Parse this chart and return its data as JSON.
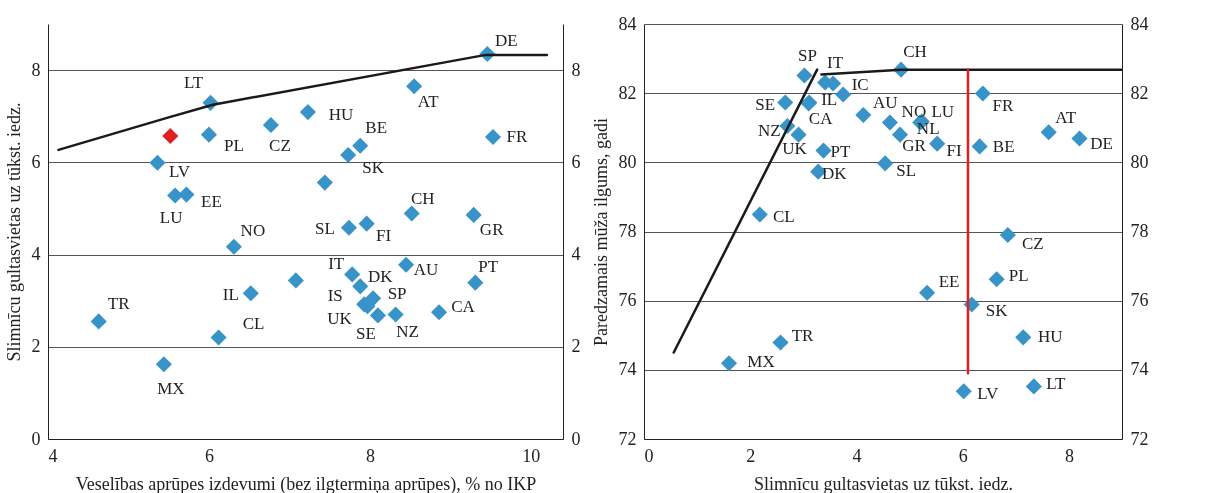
{
  "chart_data": [
    {
      "type": "scatter",
      "xlabel": "Veselības aprūpes izdevumi (bez ilgtermiņa aprūpes), % no IKP",
      "ylabel": "Slimnīcu gultasvietas uz tūkst. iedz.",
      "xlim": [
        4,
        10.4
      ],
      "ylim": [
        0,
        9
      ],
      "xticks": [
        4,
        6,
        8,
        10
      ],
      "yticks": [
        0,
        2,
        4,
        6,
        8
      ],
      "y2lim": [
        0,
        9
      ],
      "y2ticks": [
        0,
        2,
        4,
        6,
        8
      ],
      "grid": "y",
      "marker": "diamond",
      "series": [
        {
          "color": "#3893c8",
          "x": [
            9.46,
            8.55,
            9.53,
            6.02,
            6.0,
            6.77,
            7.23,
            7.88,
            7.73,
            5.36,
            5.58,
            5.72,
            7.44,
            8.52,
            9.29,
            7.74,
            7.96,
            6.31,
            7.78,
            8.45,
            9.31,
            7.08,
            6.52,
            7.88,
            8.04,
            7.93,
            7.97,
            8.1,
            8.32,
            8.86,
            4.63,
            6.12,
            5.44
          ],
          "values": [
            8.35,
            7.65,
            6.55,
            7.29,
            6.6,
            6.81,
            7.09,
            6.36,
            6.16,
            5.99,
            5.28,
            5.3,
            5.56,
            4.89,
            4.86,
            4.58,
            4.67,
            4.17,
            3.57,
            3.78,
            3.39,
            3.44,
            3.16,
            3.31,
            3.05,
            2.92,
            2.88,
            2.68,
            2.7,
            2.75,
            2.55,
            2.2,
            1.62
          ],
          "value_labels": [
            "DE",
            "AT",
            "FR",
            "LT",
            "PL",
            "CZ",
            "HU",
            "BE",
            "SK",
            "LV",
            "LU",
            "EE",
            null,
            "CH",
            "GR",
            "SL",
            "FI",
            "NO",
            "IT",
            "AU",
            "PT",
            null,
            "IL",
            "DK",
            "SP",
            "IS",
            "UK",
            "SE",
            "NZ",
            "CA",
            "TR",
            "CL",
            "MX"
          ]
        },
        {
          "type": "line",
          "marker": "none",
          "color": "#1a1a1a",
          "x": [
            4.13,
            5.51,
            6.05,
            9.44,
            10.2
          ],
          "values": [
            6.27,
            6.98,
            7.25,
            8.33,
            8.33
          ]
        },
        {
          "color": "#e02020",
          "x": [
            5.52
          ],
          "values": [
            6.57
          ]
        }
      ]
    },
    {
      "type": "scatter",
      "xlabel": "Slimnīcu gultasvietas uz tūkst. iedz.",
      "ylabel": "Paredzamais mūža ilgums, gadi",
      "xlim": [
        0,
        9
      ],
      "ylim": [
        72,
        84
      ],
      "xticks": [
        0,
        2,
        4,
        6,
        8
      ],
      "yticks": [
        72,
        74,
        76,
        78,
        80,
        82,
        84
      ],
      "y2lim": [
        72,
        84
      ],
      "y2ticks": [
        72,
        74,
        76,
        78,
        80,
        82,
        84
      ],
      "grid": "y",
      "marker": "diamond",
      "series": [
        {
          "color": "#3893c8",
          "x": [
            3.02,
            3.41,
            3.56,
            3.75,
            3.11,
            3.1,
            2.66,
            2.7,
            2.91,
            4.13,
            4.84,
            4.63,
            4.82,
            5.23,
            5.2,
            5.52,
            6.32,
            6.38,
            7.62,
            8.2,
            4.54,
            3.38,
            3.28,
            2.18,
            6.85,
            6.64,
            5.33,
            6.17,
            7.14,
            2.57,
            1.6,
            6.02,
            7.34
          ],
          "values": [
            82.51,
            82.31,
            82.28,
            81.96,
            81.73,
            81.7,
            81.73,
            81.05,
            80.8,
            81.37,
            82.68,
            81.15,
            80.8,
            81.18,
            81.15,
            80.54,
            80.46,
            81.99,
            80.87,
            80.69,
            79.97,
            80.34,
            79.73,
            78.49,
            77.9,
            76.62,
            76.23,
            75.89,
            74.94,
            74.79,
            74.19,
            73.38,
            73.52
          ],
          "value_labels": [
            "SP",
            "IT",
            null,
            "IC",
            "IL",
            "CA",
            "SE",
            "NZ",
            "UK",
            "AU",
            "CH",
            "NO",
            "GR",
            "LU",
            "NL",
            "FI",
            "BE",
            "FR",
            "AT",
            "DE",
            "SL",
            "PT",
            "DK",
            "CL",
            "CZ",
            "PL",
            "EE",
            "SK",
            "HU",
            "TR",
            "MX",
            "LV",
            "LT"
          ]
        },
        {
          "type": "line",
          "marker": "none",
          "color": "#1a1a1a",
          "x": [
            0.56,
            3.26,
            3.3,
            3.34,
            4.84,
            9
          ],
          "values": [
            74.5,
            82.68,
            null,
            82.54,
            82.68,
            82.68
          ]
        },
        {
          "type": "line",
          "marker": "none",
          "color": "#e02020",
          "x": [
            6.1,
            6.1
          ],
          "values": [
            82.68,
            73.9
          ]
        }
      ]
    }
  ]
}
